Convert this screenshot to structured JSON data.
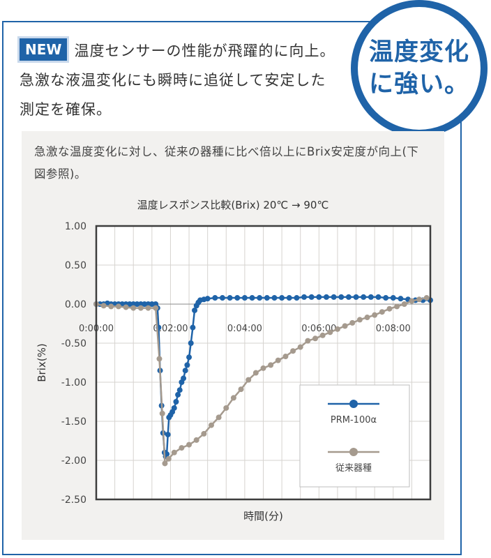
{
  "new_badge": "NEW",
  "headline": "温度センサーの性能が飛躍的に向上。急激な液温変化にも瞬時に追従して安定した測定を確保。",
  "circle": {
    "line1": "温度変化",
    "line2": "に強い。"
  },
  "description": "急激な温度変化に対し、従来の器種に比べ倍以上にBrix安定度が向上(下図参照)。",
  "colors": {
    "accent": "#1f63a8",
    "prm": "#1f63a8",
    "conventional": "#a59a8e"
  },
  "chart_data": {
    "type": "line",
    "title": "温度レスポンス比較(Brix) 20℃ → 90℃",
    "xlabel": "時間(分)",
    "ylabel": "Brix(%)",
    "xlim": [
      0,
      9
    ],
    "ylim": [
      -2.5,
      1.0
    ],
    "x_tick_labels": [
      "0:00:00",
      "0:02:00",
      "0:04:00",
      "0:06:00",
      "0:08:00"
    ],
    "x_tick_values": [
      0,
      2,
      4,
      6,
      8
    ],
    "y_ticks": [
      "1.00",
      "0.50",
      "0.00",
      "-0.50",
      "-1.00",
      "-1.50",
      "-2.00",
      "-2.50"
    ],
    "legend_position": "bottom-right",
    "series": [
      {
        "name": "PRM-100α",
        "color": "#1f63a8",
        "points": [
          [
            0.0,
            0.0
          ],
          [
            0.1,
            0.0
          ],
          [
            0.2,
            0.0
          ],
          [
            0.3,
            0.01
          ],
          [
            0.4,
            0.0
          ],
          [
            0.5,
            0.0
          ],
          [
            0.6,
            0.0
          ],
          [
            0.7,
            0.0
          ],
          [
            0.8,
            0.0
          ],
          [
            0.9,
            0.0
          ],
          [
            1.0,
            0.0
          ],
          [
            1.1,
            0.0
          ],
          [
            1.2,
            0.0
          ],
          [
            1.3,
            0.0
          ],
          [
            1.4,
            0.0
          ],
          [
            1.5,
            0.0
          ],
          [
            1.6,
            0.0
          ],
          [
            1.65,
            -0.05
          ],
          [
            1.68,
            -0.3
          ],
          [
            1.72,
            -0.85
          ],
          [
            1.76,
            -1.3
          ],
          [
            1.8,
            -1.65
          ],
          [
            1.84,
            -1.9
          ],
          [
            1.87,
            -1.95
          ],
          [
            1.9,
            -1.92
          ],
          [
            1.93,
            -1.67
          ],
          [
            1.96,
            -1.45
          ],
          [
            2.0,
            -1.42
          ],
          [
            2.05,
            -1.38
          ],
          [
            2.1,
            -1.33
          ],
          [
            2.15,
            -1.25
          ],
          [
            2.2,
            -1.16
          ],
          [
            2.25,
            -1.1
          ],
          [
            2.3,
            -1.0
          ],
          [
            2.35,
            -0.95
          ],
          [
            2.4,
            -0.85
          ],
          [
            2.45,
            -0.78
          ],
          [
            2.5,
            -0.68
          ],
          [
            2.55,
            -0.5
          ],
          [
            2.6,
            -0.3
          ],
          [
            2.65,
            -0.08
          ],
          [
            2.7,
            -0.02
          ],
          [
            2.75,
            0.02
          ],
          [
            2.8,
            0.05
          ],
          [
            2.9,
            0.06
          ],
          [
            3.0,
            0.07
          ],
          [
            3.2,
            0.08
          ],
          [
            3.4,
            0.08
          ],
          [
            3.6,
            0.08
          ],
          [
            3.8,
            0.08
          ],
          [
            4.0,
            0.08
          ],
          [
            4.2,
            0.08
          ],
          [
            4.4,
            0.08
          ],
          [
            4.6,
            0.08
          ],
          [
            4.8,
            0.08
          ],
          [
            5.0,
            0.08
          ],
          [
            5.2,
            0.08
          ],
          [
            5.4,
            0.08
          ],
          [
            5.6,
            0.09
          ],
          [
            5.8,
            0.09
          ],
          [
            6.0,
            0.09
          ],
          [
            6.2,
            0.09
          ],
          [
            6.4,
            0.09
          ],
          [
            6.6,
            0.09
          ],
          [
            6.8,
            0.09
          ],
          [
            7.0,
            0.09
          ],
          [
            7.2,
            0.09
          ],
          [
            7.4,
            0.09
          ],
          [
            7.6,
            0.09
          ],
          [
            7.8,
            0.08
          ],
          [
            8.0,
            0.08
          ],
          [
            8.2,
            0.07
          ],
          [
            8.4,
            0.06
          ],
          [
            8.6,
            0.05
          ],
          [
            8.8,
            0.05
          ],
          [
            9.0,
            0.05
          ]
        ]
      },
      {
        "name": "従来器種",
        "color": "#a59a8e",
        "points": [
          [
            0.0,
            0.0
          ],
          [
            0.2,
            -0.02
          ],
          [
            0.4,
            -0.03
          ],
          [
            0.6,
            -0.03
          ],
          [
            0.8,
            -0.04
          ],
          [
            1.0,
            -0.05
          ],
          [
            1.2,
            -0.05
          ],
          [
            1.4,
            -0.05
          ],
          [
            1.6,
            -0.05
          ],
          [
            1.7,
            -0.7
          ],
          [
            1.78,
            -1.4
          ],
          [
            1.85,
            -2.04
          ],
          [
            1.95,
            -1.98
          ],
          [
            2.1,
            -1.9
          ],
          [
            2.3,
            -1.84
          ],
          [
            2.5,
            -1.8
          ],
          [
            2.7,
            -1.74
          ],
          [
            2.9,
            -1.66
          ],
          [
            3.1,
            -1.55
          ],
          [
            3.3,
            -1.45
          ],
          [
            3.5,
            -1.33
          ],
          [
            3.7,
            -1.2
          ],
          [
            3.9,
            -1.09
          ],
          [
            4.1,
            -0.97
          ],
          [
            4.3,
            -0.88
          ],
          [
            4.5,
            -0.82
          ],
          [
            4.7,
            -0.78
          ],
          [
            4.9,
            -0.72
          ],
          [
            5.1,
            -0.67
          ],
          [
            5.3,
            -0.6
          ],
          [
            5.5,
            -0.55
          ],
          [
            5.7,
            -0.47
          ],
          [
            5.9,
            -0.44
          ],
          [
            6.1,
            -0.4
          ],
          [
            6.3,
            -0.36
          ],
          [
            6.5,
            -0.32
          ],
          [
            6.7,
            -0.28
          ],
          [
            6.9,
            -0.24
          ],
          [
            7.1,
            -0.2
          ],
          [
            7.3,
            -0.17
          ],
          [
            7.5,
            -0.14
          ],
          [
            7.7,
            -0.1
          ],
          [
            7.9,
            -0.06
          ],
          [
            8.1,
            -0.03
          ],
          [
            8.3,
            0.0
          ],
          [
            8.5,
            0.04
          ],
          [
            8.7,
            0.06
          ],
          [
            8.9,
            0.08
          ]
        ]
      }
    ]
  }
}
